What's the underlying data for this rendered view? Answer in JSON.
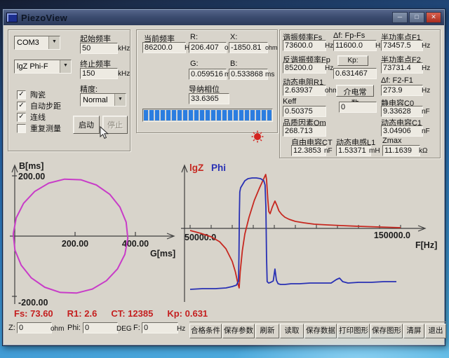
{
  "window": {
    "title": "PiezoView"
  },
  "icons": {
    "minimize": "─",
    "maximize": "□",
    "close": "✕",
    "dropdown": "▼",
    "check": "✓"
  },
  "colors": {
    "progress": "#2b7de0",
    "curve_lgz": "#c62820",
    "curve_phi": "#2830b4",
    "curve_circle": "#c83cc8",
    "status_text": "#c41f1f",
    "axis": "#3f3f3f"
  },
  "left_panel": {
    "com_port": "COM3",
    "mode": "lgZ Phi-F",
    "start_freq_label": "起始频率",
    "start_freq": "50",
    "start_freq_unit": "kHz",
    "stop_freq_label": "终止频率",
    "stop_freq": "150",
    "stop_freq_unit": "kHz",
    "precision_label": "精度:",
    "precision": "Normal",
    "checkboxes": [
      {
        "label": "陶瓷",
        "checked": true
      },
      {
        "label": "自动步距",
        "checked": true
      },
      {
        "label": "连线",
        "checked": true
      },
      {
        "label": "重复测量",
        "checked": false
      }
    ],
    "start_button": "启动",
    "stop_button": "停止"
  },
  "middle_panel": {
    "current_freq_label": "当前频率",
    "current_freq": "86200.0",
    "current_freq_unit": "Hz",
    "r_label": "R:",
    "r_value": "206.407",
    "r_unit": "ohm",
    "x_label": "X:",
    "x_value": "-1850.81",
    "x_unit": "ohm",
    "g_label": "G:",
    "g_value": "0.059516",
    "g_unit": "ms",
    "b_label": "B:",
    "b_value": "0.533868",
    "b_unit": "ms",
    "phase_label": "导纳相位",
    "phase_value": "33.6365",
    "progress_percent": 100
  },
  "right_panel": {
    "fs_label": "谐振频率Fs",
    "fs": "73600.0",
    "fs_unit": "Hz",
    "df1_label": "Δf: Fp-Fs",
    "df1": "11600.0",
    "df1_unit": "Hz",
    "f1_label": "半功率点F1",
    "f1": "73457.5",
    "f1_unit": "Hz",
    "fp_label": "反谐振频率Fp",
    "fp": "85200.0",
    "fp_unit": "Hz",
    "kp_button": "Kp:",
    "kp": "0.631467",
    "f2_label": "半功率点F2",
    "f2": "73731.4",
    "f2_unit": "Hz",
    "r1_label": "动态电阻R1",
    "r1": "2.63937",
    "r1_unit": "ohm",
    "dielectric_button": "介电常数",
    "dielectric": "0",
    "df2_label": "Δf: F2-F1",
    "df2": "273.9",
    "df2_unit": "Hz",
    "keff_label": "Keff",
    "keff": "0.50375",
    "c0_label": "静电容C0",
    "c0": "9.33628",
    "c0_unit": "nF",
    "qm_label": "品质因素Qm",
    "qm": "268.713",
    "c1_label": "动态电容C1",
    "c1": "3.04906",
    "c1_unit": "nF",
    "ct_label": "自由电容CT",
    "ct": "12.3853",
    "ct_unit": "nF",
    "l1_label": "动态电感L1",
    "l1": "1.53371",
    "l1_unit": "mH",
    "zmax_label": "Zmax",
    "zmax": "11.1639",
    "zmax_unit": "kΩ"
  },
  "status": {
    "items": [
      {
        "label": "Fs:",
        "value": "73.60"
      },
      {
        "label": "R1:",
        "value": "2.6"
      },
      {
        "label": "CT:",
        "value": "12385"
      },
      {
        "label": "Kp:",
        "value": "0.631"
      }
    ]
  },
  "bottom_bar": {
    "z_label": "Z:",
    "z_value": "0",
    "z_unit": "ohm",
    "phi_label": "Phi:",
    "phi_value": "0",
    "phi_unit": "DEG",
    "f_label": "F:",
    "f_value": "0",
    "f_unit": "Hz",
    "buttons": [
      "合格条件",
      "保存参数",
      "刷新",
      "读取",
      "保存数据",
      "打印图形",
      "保存图形",
      "清屏",
      "退出"
    ]
  },
  "chart_data": [
    {
      "type": "line",
      "name": "admittance-circle-chart",
      "xlabel": "G[ms]",
      "ylabel": "B[ms]",
      "xlim": [
        0,
        540
      ],
      "ylim": [
        -235,
        235
      ],
      "x_ticks": [
        {
          "v": 200,
          "label": "200.00"
        },
        {
          "v": 400,
          "label": "400.00"
        }
      ],
      "y_ticks": [
        {
          "v": 200,
          "label": "200.00"
        },
        {
          "v": -200,
          "label": "-200.00"
        }
      ],
      "series": [
        {
          "name": "G-B-locus",
          "color": "#c83cc8",
          "circle": {
            "cx": 185,
            "cy": 0,
            "r": 190,
            "segments": 22,
            "start_deg": 96
          }
        }
      ]
    },
    {
      "type": "line",
      "name": "impedance-phase-chart",
      "xlabel": "F[Hz]",
      "ylabel": "",
      "xlim": [
        50000,
        150000
      ],
      "ylim": [
        -100,
        100
      ],
      "legend": [
        {
          "label": "lgZ",
          "color": "#c62820"
        },
        {
          "label": "Phi",
          "color": "#2830b4"
        }
      ],
      "x_ticks": [
        {
          "v": 50000,
          "label": "50000.0"
        },
        {
          "v": 60000
        },
        {
          "v": 70000
        },
        {
          "v": 80000
        },
        {
          "v": 90000
        },
        {
          "v": 100000
        },
        {
          "v": 110000
        },
        {
          "v": 120000
        },
        {
          "v": 130000
        },
        {
          "v": 140000
        },
        {
          "v": 150000,
          "label": "150000.0"
        }
      ],
      "series": [
        {
          "name": "lgZ",
          "color": "#c62820",
          "points": [
            [
              50000,
              -3
            ],
            [
              55000,
              -7
            ],
            [
              60000,
              -12
            ],
            [
              64000,
              -19
            ],
            [
              67000,
              -29
            ],
            [
              70000,
              -47
            ],
            [
              71500,
              -62
            ],
            [
              72800,
              -80
            ],
            [
              73300,
              -85
            ],
            [
              73800,
              -62
            ],
            [
              74800,
              -32
            ],
            [
              76000,
              -8
            ],
            [
              78000,
              16
            ],
            [
              80500,
              40
            ],
            [
              83000,
              58
            ],
            [
              85000,
              71
            ],
            [
              85900,
              77
            ],
            [
              86300,
              70
            ],
            [
              86900,
              42
            ],
            [
              87400,
              24
            ],
            [
              88000,
              21
            ],
            [
              89000,
              30
            ],
            [
              90300,
              39
            ],
            [
              91200,
              33
            ],
            [
              92200,
              25
            ],
            [
              93500,
              20
            ],
            [
              95000,
              16
            ],
            [
              97000,
              13
            ],
            [
              100000,
              10
            ],
            [
              104000,
              8
            ],
            [
              109000,
              6
            ],
            [
              115000,
              5
            ],
            [
              122000,
              4
            ],
            [
              130000,
              3
            ],
            [
              140000,
              2
            ],
            [
              150000,
              1
            ]
          ]
        },
        {
          "name": "Phi",
          "color": "#2830b4",
          "points": [
            [
              50000,
              -87
            ],
            [
              56000,
              -86
            ],
            [
              62000,
              -86
            ],
            [
              67000,
              -85
            ],
            [
              70000,
              -83
            ],
            [
              72000,
              -81
            ],
            [
              73000,
              -75
            ],
            [
              73200,
              -40
            ],
            [
              73400,
              20
            ],
            [
              73600,
              52
            ],
            [
              74000,
              58
            ],
            [
              74800,
              62
            ],
            [
              76000,
              68
            ],
            [
              77500,
              71
            ],
            [
              79500,
              72
            ],
            [
              81500,
              72
            ],
            [
              83500,
              71
            ],
            [
              85000,
              68
            ],
            [
              85600,
              62
            ],
            [
              86000,
              30
            ],
            [
              86300,
              -40
            ],
            [
              86600,
              -76
            ],
            [
              87300,
              -78
            ],
            [
              88300,
              -77
            ],
            [
              89500,
              -75
            ],
            [
              90300,
              -58
            ],
            [
              91000,
              -74
            ],
            [
              91800,
              -79
            ],
            [
              93000,
              -80
            ],
            [
              95000,
              -80
            ],
            [
              98000,
              -79
            ],
            [
              102000,
              -79
            ],
            [
              107000,
              -78
            ],
            [
              112000,
              -78
            ],
            [
              117000,
              -78
            ],
            [
              119500,
              -73
            ],
            [
              121000,
              -71
            ],
            [
              122500,
              -76
            ],
            [
              125000,
              -78
            ],
            [
              130000,
              -77
            ],
            [
              136000,
              -77
            ],
            [
              142000,
              -76
            ],
            [
              148000,
              -76
            ]
          ]
        }
      ]
    }
  ]
}
